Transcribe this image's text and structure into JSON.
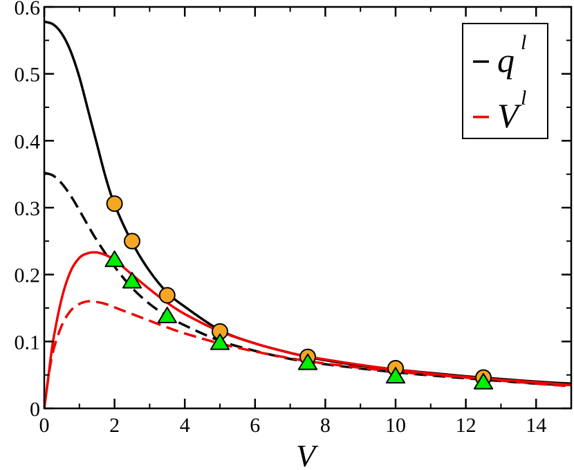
{
  "chart_data": {
    "type": "line",
    "xlabel": "V",
    "ylabel": "",
    "xlim": [
      0,
      15
    ],
    "ylim": [
      0,
      0.6
    ],
    "xticks": [
      0,
      2,
      4,
      6,
      8,
      10,
      12,
      14
    ],
    "xtick_labels": [
      "0",
      "2",
      "4",
      "6",
      "8",
      "10",
      "12",
      "14"
    ],
    "yticks": [
      0,
      0.1,
      0.2,
      0.3,
      0.4,
      0.5,
      0.6
    ],
    "ytick_labels": [
      "0",
      "0.1",
      "0.2",
      "0.3",
      "0.4",
      "0.5",
      "0.6"
    ],
    "grid": false,
    "legend": {
      "placement": "top-right",
      "entries": [
        {
          "main": "q",
          "sup": "l",
          "color": "#000000"
        },
        {
          "main": "V",
          "sup": "l",
          "color": "#ee0000"
        }
      ]
    },
    "series": [
      {
        "style": "solid",
        "color": "#000000",
        "x": [
          0,
          0.25,
          0.5,
          0.75,
          1,
          1.25,
          1.5,
          1.75,
          2,
          2.5,
          3,
          3.5,
          4,
          5,
          6,
          7,
          7.5,
          8,
          9,
          10,
          11,
          12,
          12.5,
          13,
          14,
          15
        ],
        "y": [
          0.578,
          0.574,
          0.56,
          0.534,
          0.495,
          0.445,
          0.395,
          0.345,
          0.305,
          0.248,
          0.205,
          0.173,
          0.152,
          0.117,
          0.097,
          0.083,
          0.077,
          0.072,
          0.064,
          0.058,
          0.053,
          0.048,
          0.046,
          0.044,
          0.04,
          0.037
        ]
      },
      {
        "style": "dashed",
        "color": "#000000",
        "x": [
          0,
          0.25,
          0.5,
          0.75,
          1,
          1.25,
          1.5,
          2,
          2.5,
          3,
          3.5,
          4,
          5,
          6,
          7,
          8,
          10,
          12,
          14,
          15
        ],
        "y": [
          0.352,
          0.348,
          0.336,
          0.318,
          0.296,
          0.273,
          0.251,
          0.212,
          0.18,
          0.156,
          0.138,
          0.124,
          0.101,
          0.086,
          0.074,
          0.066,
          0.054,
          0.045,
          0.037,
          0.035
        ]
      },
      {
        "style": "solid",
        "color": "#ee0000",
        "x": [
          0,
          0.1,
          0.25,
          0.5,
          0.75,
          1,
          1.25,
          1.5,
          1.75,
          2,
          2.5,
          3,
          3.5,
          4,
          5,
          6,
          7,
          8,
          10,
          12,
          14,
          15
        ],
        "y": [
          0,
          0.04,
          0.1,
          0.165,
          0.205,
          0.225,
          0.232,
          0.233,
          0.229,
          0.222,
          0.2,
          0.178,
          0.158,
          0.141,
          0.115,
          0.097,
          0.083,
          0.073,
          0.058,
          0.047,
          0.039,
          0.035
        ]
      },
      {
        "style": "dashed",
        "color": "#ee0000",
        "x": [
          0,
          0.1,
          0.25,
          0.5,
          0.75,
          1,
          1.25,
          1.5,
          1.75,
          2,
          2.5,
          3,
          3.5,
          4,
          5,
          6,
          7,
          8,
          10,
          12,
          14,
          15
        ],
        "y": [
          0,
          0.04,
          0.085,
          0.124,
          0.146,
          0.156,
          0.16,
          0.159,
          0.156,
          0.151,
          0.141,
          0.131,
          0.121,
          0.112,
          0.097,
          0.085,
          0.075,
          0.067,
          0.055,
          0.046,
          0.037,
          0.033
        ]
      }
    ],
    "markers": [
      {
        "shape": "circle",
        "color": "#f5a623",
        "x": [
          2,
          2.5,
          3.5,
          5,
          7.5,
          10,
          12.5
        ],
        "y": [
          0.306,
          0.25,
          0.169,
          0.115,
          0.077,
          0.06,
          0.046
        ]
      },
      {
        "shape": "triangle",
        "color": "#00ee00",
        "x": [
          2,
          2.5,
          3.5,
          5,
          7.5,
          10,
          12.5
        ],
        "y": [
          0.222,
          0.19,
          0.138,
          0.098,
          0.068,
          0.048,
          0.039
        ]
      }
    ]
  }
}
